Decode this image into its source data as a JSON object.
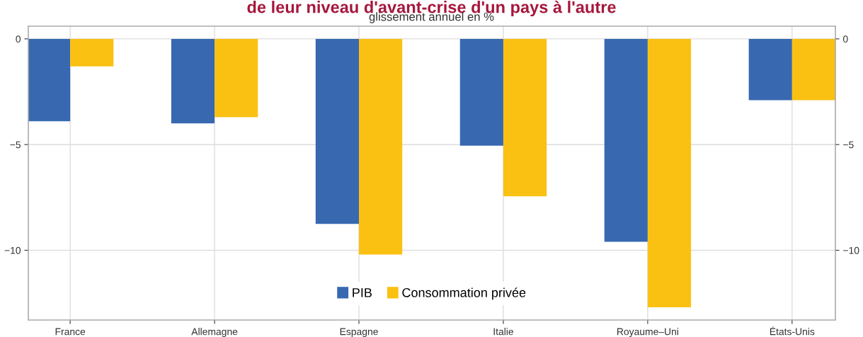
{
  "chart_data": {
    "type": "bar",
    "title": "de leur niveau d'avant-crise d'un pays à l'autre",
    "subtitle": "glissement annuel en %",
    "categories": [
      "France",
      "Allemagne",
      "Espagne",
      "Italie",
      "Royaume–Uni",
      "États-Unis"
    ],
    "series": [
      {
        "name": "PIB",
        "color": "#3768b0",
        "values": [
          -3.9,
          -4.0,
          -8.75,
          -5.05,
          -9.6,
          -2.9
        ]
      },
      {
        "name": "Consommation privée",
        "color": "#fac112",
        "values": [
          -1.3,
          -3.7,
          -10.2,
          -7.45,
          -12.7,
          -2.9
        ]
      }
    ],
    "ylim": [
      -13.3,
      0.6
    ],
    "yticks": [
      {
        "value": 0,
        "label": "0"
      },
      {
        "value": -5,
        "label": "−5"
      },
      {
        "value": -10,
        "label": "−10"
      }
    ],
    "y2lim": [
      -13.3,
      0.6
    ],
    "y2ticks": [
      {
        "value": 0,
        "label": "0"
      },
      {
        "value": -5,
        "label": "−5"
      },
      {
        "value": -10,
        "label": "−10"
      }
    ],
    "grid": true,
    "legend": "bottom"
  }
}
